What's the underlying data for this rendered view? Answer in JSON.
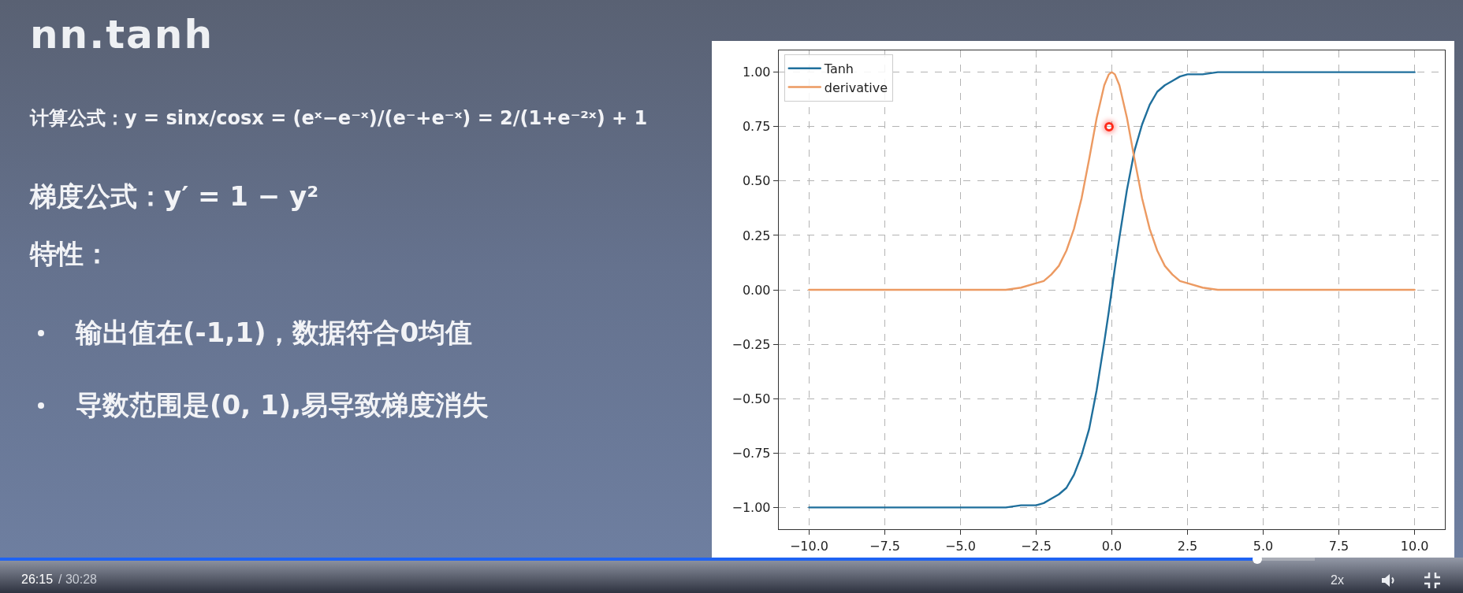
{
  "chart_data": {
    "type": "line",
    "title": "nn.tanh",
    "annotations": [
      "计算公式：y = sinx/cosx = (eˣ−e⁻ˣ)/(e⁻+e⁻ˣ) = 2/(1+e⁻²ˣ) + 1",
      "梯度公式：y′ = 1 − y²",
      "特性：",
      "输出值在(-1,1)，数据符合0均值",
      "导数范围是(0, 1),易导致梯度消失",
      "26:15",
      "/ 30:28",
      "2x"
    ],
    "x": [
      -10,
      -8,
      -6,
      -5,
      -4,
      -3.5,
      -3,
      -2.5,
      -2.25,
      -2,
      -1.75,
      -1.5,
      -1.25,
      -1,
      -0.75,
      -0.5,
      -0.25,
      -0.1,
      0,
      0.1,
      0.25,
      0.5,
      0.75,
      1,
      1.25,
      1.5,
      1.75,
      2,
      2.25,
      2.5,
      3,
      3.5,
      4,
      5,
      6,
      8,
      10
    ],
    "series": [
      {
        "name": "Tanh",
        "color": "#1f6f9c",
        "values": [
          -1,
          -1,
          -1,
          -1,
          -1,
          -1,
          -0.99,
          -0.99,
          -0.98,
          -0.96,
          -0.94,
          -0.91,
          -0.85,
          -0.76,
          -0.64,
          -0.46,
          -0.24,
          -0.1,
          0,
          0.1,
          0.24,
          0.46,
          0.64,
          0.76,
          0.85,
          0.91,
          0.94,
          0.96,
          0.98,
          0.99,
          0.99,
          1,
          1,
          1,
          1,
          1,
          1
        ]
      },
      {
        "name": "derivative",
        "color": "#ec9a62",
        "values": [
          0,
          0,
          0,
          0,
          0,
          0,
          0.01,
          0.03,
          0.04,
          0.07,
          0.11,
          0.18,
          0.28,
          0.42,
          0.6,
          0.79,
          0.94,
          0.99,
          1,
          0.99,
          0.94,
          0.79,
          0.6,
          0.42,
          0.28,
          0.18,
          0.11,
          0.07,
          0.04,
          0.03,
          0.01,
          0,
          0,
          0,
          0,
          0,
          0
        ]
      }
    ],
    "xlim": [
      -11,
      11
    ],
    "ylim": [
      -1.1,
      1.1
    ],
    "xticks": [
      {
        "value": -10,
        "label": "−10.0"
      },
      {
        "value": -7.5,
        "label": "−7.5"
      },
      {
        "value": -5,
        "label": "−5.0"
      },
      {
        "value": -2.5,
        "label": "−2.5"
      },
      {
        "value": 0,
        "label": "0.0"
      },
      2.5,
      {
        "value": 5,
        "label": "5.0"
      },
      7.5,
      {
        "value": 10,
        "label": "10.0"
      }
    ],
    "yticks": [
      {
        "value": -1,
        "label": "−1.00"
      },
      {
        "value": -0.75,
        "label": "−0.75"
      },
      {
        "value": -0.5,
        "label": "−0.50"
      },
      {
        "value": -0.25,
        "label": "−0.25"
      },
      {
        "value": 0,
        "label": "0.00"
      },
      0.25,
      {
        "value": 0.5,
        "label": "0.50"
      },
      0.75,
      {
        "value": 1,
        "label": "1.00"
      }
    ],
    "grid": true,
    "legend": "top left",
    "marker": "none",
    "line_style": "solid"
  }
}
